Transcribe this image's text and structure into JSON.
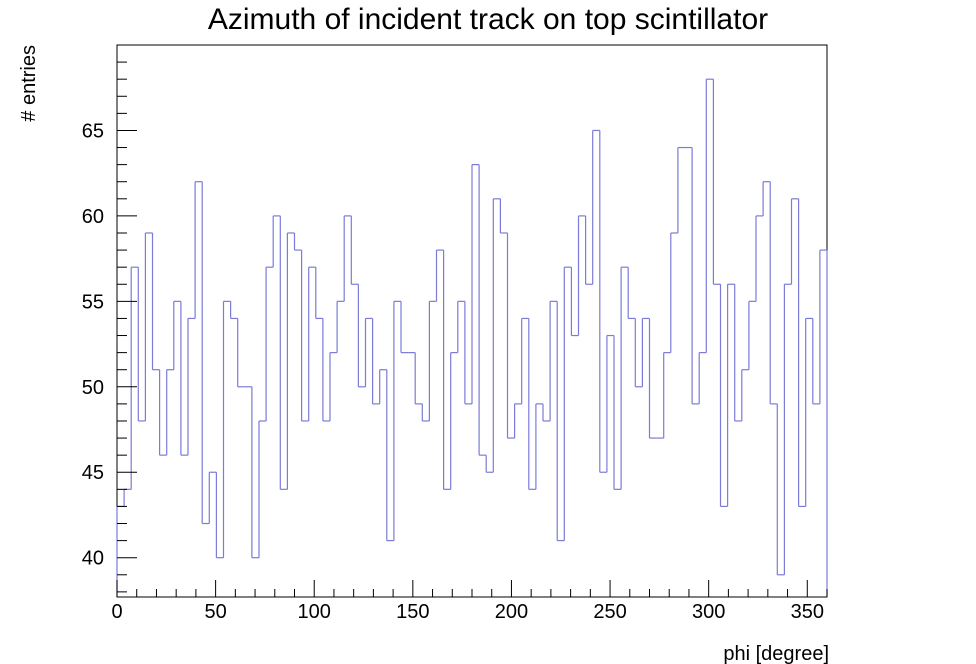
{
  "chart_data": {
    "type": "bar",
    "style": "step-histogram",
    "title": "Azimuth of incident track on top scintillator",
    "xlabel": "phi [degree]",
    "ylabel": "# entries",
    "xlim": [
      0,
      360
    ],
    "ylim": [
      37.7,
      70.0
    ],
    "x_ticks": [
      0,
      50,
      100,
      150,
      200,
      250,
      300,
      350
    ],
    "y_ticks": [
      40,
      45,
      50,
      55,
      60,
      65
    ],
    "x_tick_labels": [
      "0",
      "50",
      "100",
      "150",
      "200",
      "250",
      "300",
      "350"
    ],
    "y_tick_labels": [
      "40",
      "45",
      "50",
      "55",
      "60",
      "65"
    ],
    "bin_width": 3.6,
    "grid": false,
    "line_color": "#7b7bd8",
    "series": [
      {
        "values": [
          43,
          44,
          57,
          48,
          59,
          51,
          46,
          51,
          55,
          46,
          54,
          62,
          42,
          45,
          40,
          55,
          54,
          50,
          50,
          40,
          48,
          57,
          60,
          44,
          59,
          58,
          48,
          57,
          54,
          48,
          52,
          55,
          60,
          56,
          50,
          54,
          49,
          51,
          41,
          55,
          52,
          52,
          49,
          48,
          55,
          58,
          44,
          52,
          55,
          49,
          63,
          46,
          45,
          61,
          59,
          47,
          49,
          54,
          44,
          49,
          48,
          55,
          41,
          57,
          53,
          60,
          56,
          65,
          45,
          53,
          44,
          57,
          54,
          50,
          54,
          47,
          47,
          52,
          59,
          64,
          64,
          49,
          52,
          68,
          56,
          43,
          56,
          48,
          51,
          55,
          60,
          62,
          49,
          39,
          56,
          61,
          43,
          54,
          49,
          58
        ]
      }
    ]
  }
}
